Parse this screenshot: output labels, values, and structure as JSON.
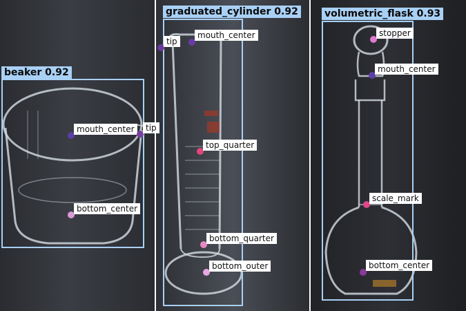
{
  "detections": [
    {
      "label": "beaker 0.92",
      "keypoints": [
        {
          "name": "mouth_center",
          "color": "#5b3fa8"
        },
        {
          "name": "tip",
          "color": "#7a3f9c"
        },
        {
          "name": "bottom_center",
          "color": "#d89ad8"
        }
      ]
    },
    {
      "label": "graduated_cylinder 0.92",
      "keypoints": [
        {
          "name": "tip",
          "color": "#6d3a9e"
        },
        {
          "name": "mouth_center",
          "color": "#6a3aa8"
        },
        {
          "name": "top_quarter",
          "color": "#e0477a"
        },
        {
          "name": "bottom_quarter",
          "color": "#e888c0"
        },
        {
          "name": "bottom_outer",
          "color": "#e8a8e0"
        }
      ]
    },
    {
      "label": "volumetric_flask 0.93",
      "keypoints": [
        {
          "name": "stopper",
          "color": "#e07ad0"
        },
        {
          "name": "mouth_center",
          "color": "#5b3fa8"
        },
        {
          "name": "scale_mark",
          "color": "#e0478a"
        },
        {
          "name": "bottom_center",
          "color": "#8a3a9c"
        }
      ]
    }
  ],
  "box_color": "#a9d0f5"
}
